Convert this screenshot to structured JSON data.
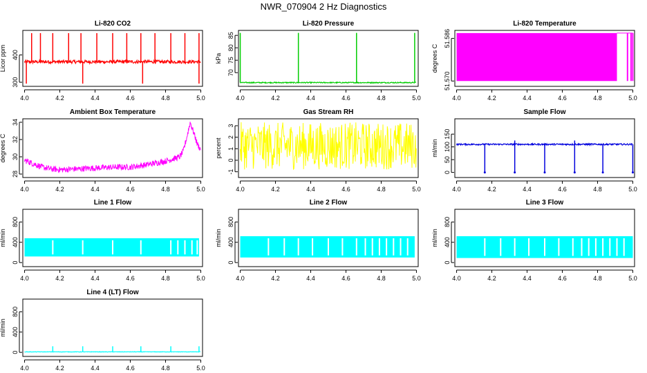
{
  "page_title": "NWR_070904  2 Hz Diagnostics",
  "chart_data": [
    {
      "type": "line",
      "title": "Li-820 CO2",
      "ylabel": "Licor ppm",
      "xlabel": "",
      "xlim": [
        3.99,
        5.01
      ],
      "ylim": [
        285,
        490
      ],
      "xticks": [
        4.0,
        4.2,
        4.4,
        4.6,
        4.8,
        5.0
      ],
      "yticks": [
        300,
        400
      ],
      "color": "#ff0000",
      "baseline": 375,
      "noise": 6,
      "spikes_up": [
        4.04,
        4.09,
        4.16,
        4.25,
        4.32,
        4.41,
        4.5,
        4.58,
        4.66,
        4.74,
        4.83,
        4.91,
        4.99
      ],
      "spikes_up_value": 480,
      "spikes_down": [
        4.01,
        4.33,
        4.67,
        4.99
      ],
      "spikes_down_value": 295
    },
    {
      "type": "line",
      "title": "Li-820 Pressure",
      "ylabel": "kPa",
      "xlabel": "",
      "xlim": [
        3.99,
        5.01
      ],
      "ylim": [
        64.5,
        87
      ],
      "xticks": [
        4.0,
        4.2,
        4.4,
        4.6,
        4.8,
        5.0
      ],
      "yticks": [
        70,
        75,
        80,
        85
      ],
      "color": "#00cc00",
      "baseline": 66,
      "noise": 0.2,
      "spikes_up": [
        4.0,
        4.33,
        4.66,
        4.99
      ],
      "spikes_up_value": 86,
      "spikes_down": [],
      "spikes_down_value": 66
    },
    {
      "type": "area",
      "title": "Li-820 Temperature",
      "ylabel": "degrees C",
      "xlabel": "",
      "xlim": [
        3.99,
        5.01
      ],
      "ylim": [
        51.568,
        51.589
      ],
      "xticks": [
        4.0,
        4.2,
        4.4,
        4.6,
        4.8,
        5.0
      ],
      "yticks": [
        51.57,
        51.586
      ],
      "ytick_labels": [
        "51.570",
        "51.586"
      ],
      "color": "#ff00ff",
      "band_low": 51.57,
      "band_high": 51.588,
      "band_end": 4.91,
      "extra_lines": [
        4.97,
        4.99,
        5.0
      ]
    },
    {
      "type": "line",
      "title": "Ambient Box Temperature",
      "ylabel": "degrees C",
      "xlabel": "",
      "xlim": [
        3.99,
        5.01
      ],
      "ylim": [
        27.6,
        34.4
      ],
      "xticks": [
        4.0,
        4.2,
        4.4,
        4.6,
        4.8,
        5.0
      ],
      "yticks": [
        28,
        30,
        32,
        34
      ],
      "color": "#ff00ff",
      "curve_x": [
        4.0,
        4.05,
        4.1,
        4.15,
        4.2,
        4.3,
        4.4,
        4.5,
        4.6,
        4.7,
        4.75,
        4.8,
        4.85,
        4.88,
        4.9,
        4.92,
        4.94,
        4.96,
        4.98,
        5.0
      ],
      "curve_y": [
        29.6,
        29.2,
        28.8,
        28.6,
        28.5,
        28.6,
        28.7,
        28.8,
        28.8,
        29.1,
        29.3,
        29.5,
        29.8,
        30.0,
        30.6,
        32.2,
        34.0,
        32.8,
        31.5,
        30.8
      ],
      "noise": 0.35
    },
    {
      "type": "line",
      "title": "Gas Stream RH",
      "ylabel": "percent",
      "xlabel": "",
      "xlim": [
        3.99,
        5.01
      ],
      "ylim": [
        -1.5,
        3.6
      ],
      "xticks": [
        4.0,
        4.2,
        4.4,
        4.6,
        4.8,
        5.0
      ],
      "yticks": [
        -1,
        0,
        1,
        2,
        3
      ],
      "color": "#ffff00",
      "baseline": 1.0,
      "noise": 2.3,
      "low_bound": -0.8,
      "high_bound": 3.3
    },
    {
      "type": "line",
      "title": "Sample Flow",
      "ylabel": "ml/min",
      "xlabel": "",
      "xlim": [
        3.99,
        5.01
      ],
      "ylim": [
        -20,
        210
      ],
      "xticks": [
        4.0,
        4.2,
        4.4,
        4.6,
        4.8,
        5.0
      ],
      "yticks": [
        0,
        50,
        100,
        150
      ],
      "color": "#0000dd",
      "baseline": 110,
      "noise": 3,
      "spikes_up": [
        4.33,
        4.67
      ],
      "spikes_up_value": 125,
      "spikes_down": [
        4.16,
        4.33,
        4.5,
        4.67,
        4.83,
        5.0
      ],
      "spikes_down_value": 0
    },
    {
      "type": "area",
      "title": "Line 1 Flow",
      "ylabel": "ml/min",
      "xlabel": "",
      "xlim": [
        3.99,
        5.01
      ],
      "ylim": [
        -80,
        1050
      ],
      "xticks": [
        4.0,
        4.2,
        4.4,
        4.6,
        4.8,
        5.0
      ],
      "yticks": [
        0,
        400,
        800
      ],
      "color": "#00ffff",
      "band_low": 120,
      "band_high": 480,
      "band_end": 4.99,
      "gaps": [
        4.16,
        4.33,
        4.5,
        4.66,
        4.83,
        4.87,
        4.91,
        4.95,
        4.98
      ]
    },
    {
      "type": "area",
      "title": "Line 2 Flow",
      "ylabel": "ml/min",
      "xlabel": "",
      "xlim": [
        3.99,
        5.01
      ],
      "ylim": [
        -80,
        1050
      ],
      "xticks": [
        4.0,
        4.2,
        4.4,
        4.6,
        4.8,
        5.0
      ],
      "yticks": [
        0,
        400,
        800
      ],
      "color": "#00ffff",
      "band_low": 100,
      "band_high": 520,
      "band_end": 4.99,
      "gaps": [
        4.16,
        4.25,
        4.33,
        4.41,
        4.5,
        4.58,
        4.66,
        4.71,
        4.75,
        4.79,
        4.83,
        4.87,
        4.91,
        4.95
      ]
    },
    {
      "type": "area",
      "title": "Line 3 Flow",
      "ylabel": "ml/min",
      "xlabel": "",
      "xlim": [
        3.99,
        5.01
      ],
      "ylim": [
        -80,
        1050
      ],
      "xticks": [
        4.0,
        4.2,
        4.4,
        4.6,
        4.8,
        5.0
      ],
      "yticks": [
        0,
        400,
        800
      ],
      "color": "#00ffff",
      "band_low": 90,
      "band_high": 520,
      "band_end": 5.0,
      "gaps": [
        4.16,
        4.25,
        4.33,
        4.41,
        4.5,
        4.58,
        4.66,
        4.71,
        4.75,
        4.79,
        4.83,
        4.87,
        4.91,
        4.95
      ]
    },
    {
      "type": "line",
      "title": "Line 4 (LT) Flow",
      "ylabel": "ml/min",
      "xlabel": "",
      "xlim": [
        3.99,
        5.01
      ],
      "ylim": [
        -80,
        1050
      ],
      "xticks": [
        4.0,
        4.2,
        4.4,
        4.6,
        4.8,
        5.0
      ],
      "yticks": [
        0,
        400,
        800
      ],
      "color": "#00ffff",
      "baseline": 10,
      "noise": 4,
      "spikes_up": [
        4.16,
        4.33,
        4.5,
        4.66,
        4.83,
        4.99
      ],
      "spikes_up_value": 120,
      "spikes_down": [],
      "spikes_down_value": 10
    }
  ]
}
